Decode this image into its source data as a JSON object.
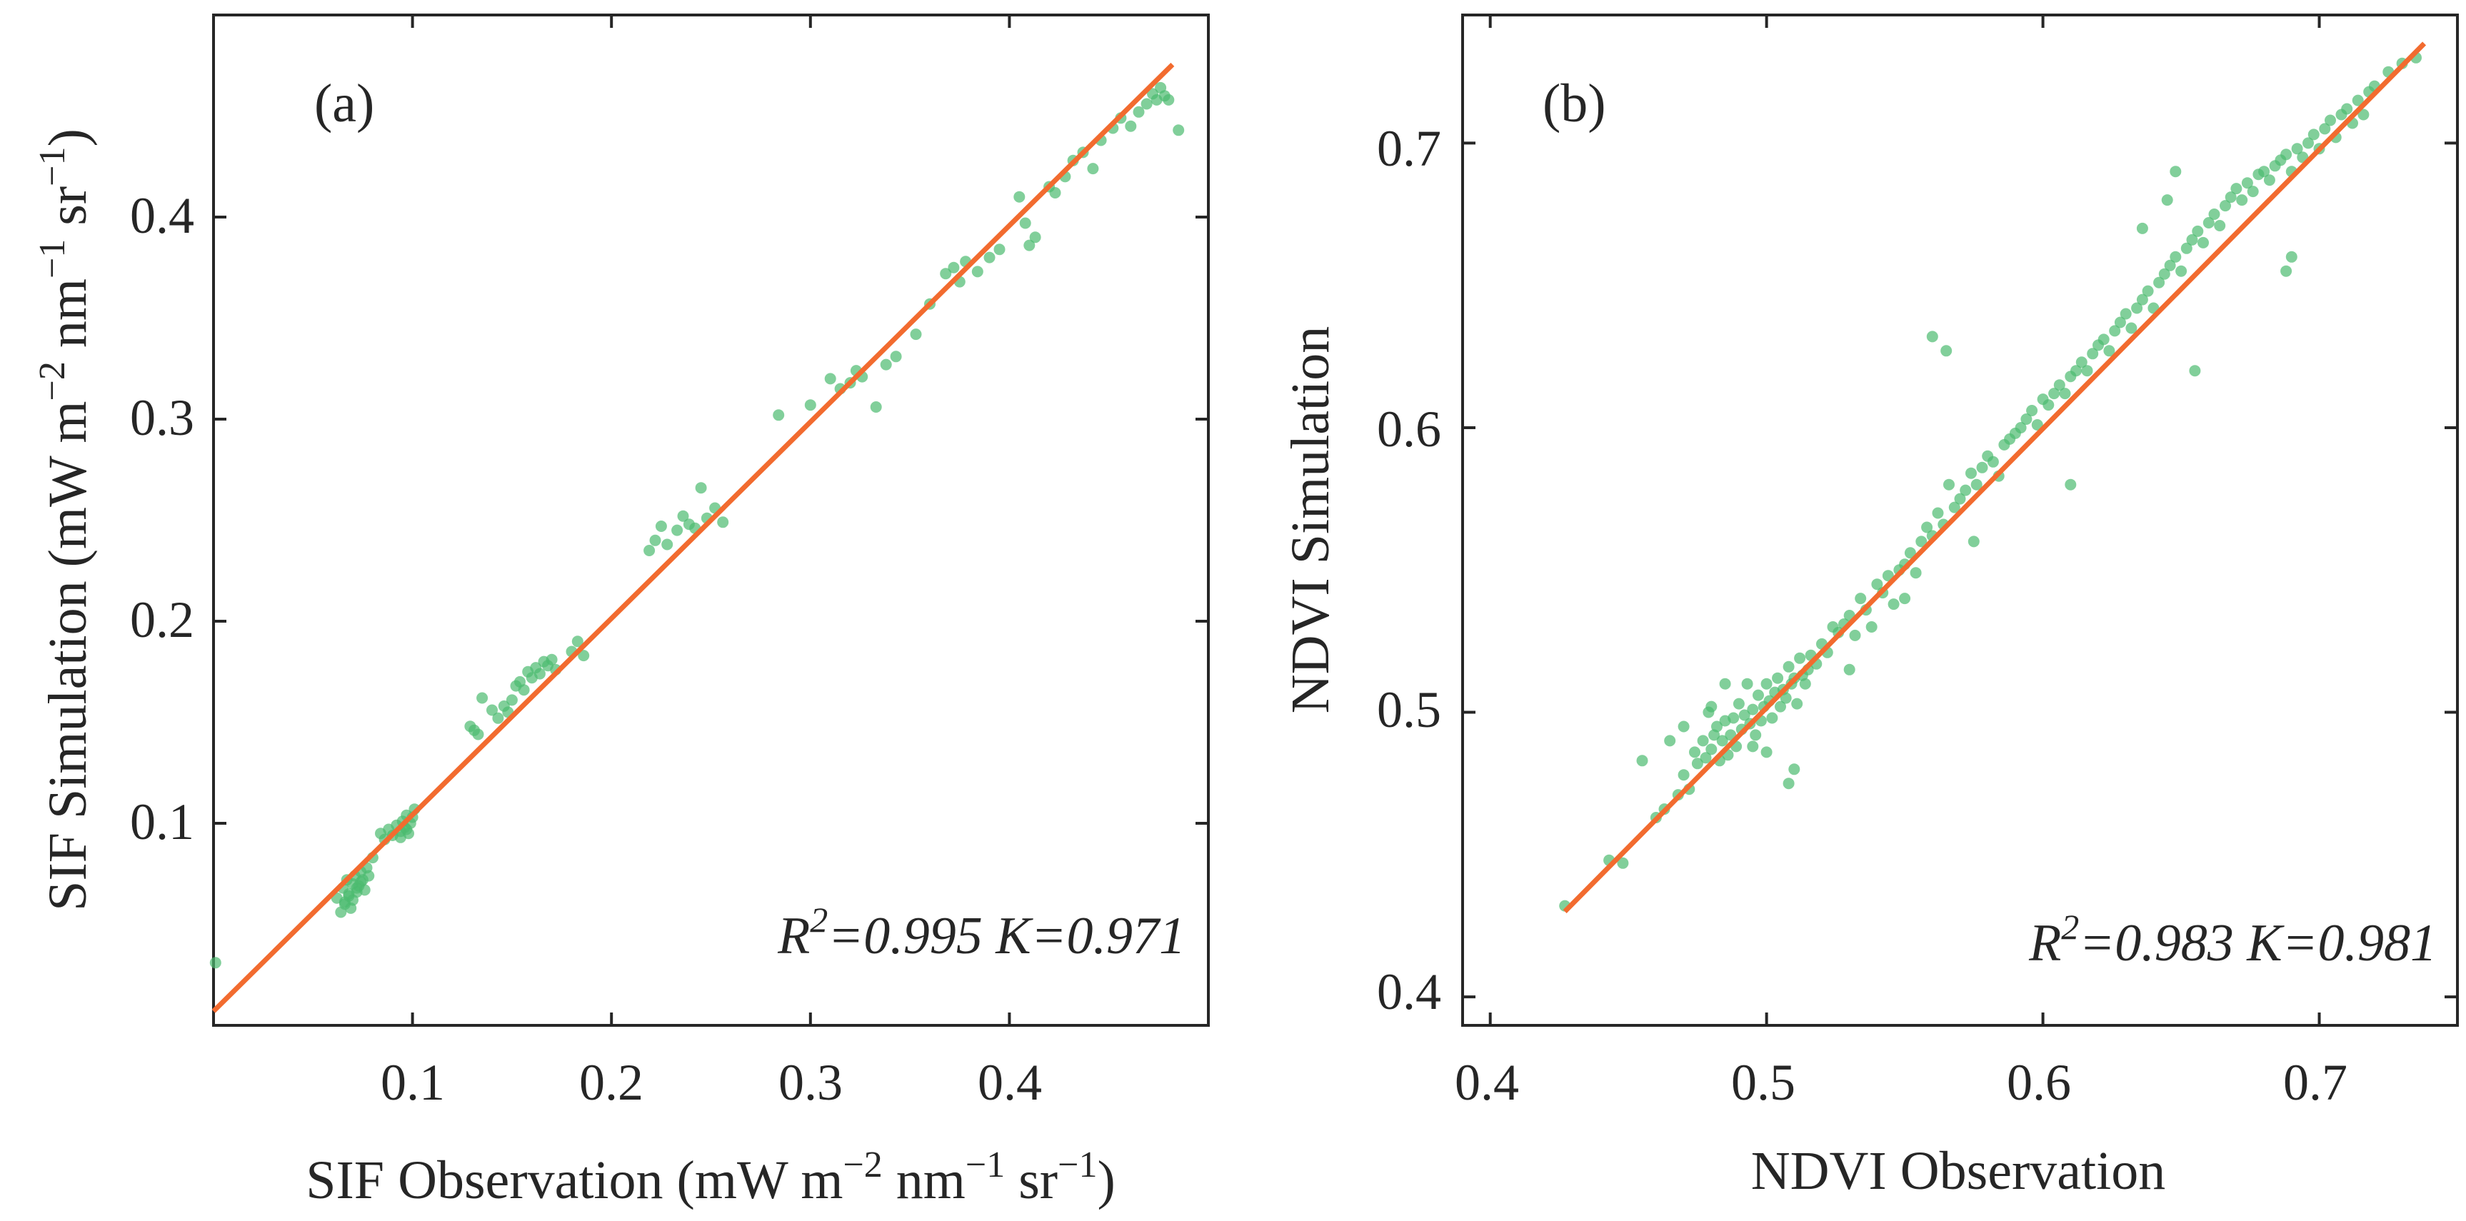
{
  "chart_data": [
    {
      "type": "scatter",
      "panel_label": "(a)",
      "xlabel": {
        "main": "SIF Observation (mW m",
        "e1": "−2",
        "mid1": " nm",
        "e2": "−1",
        "mid2": " sr",
        "e3": "−1",
        "end": ")"
      },
      "ylabel": {
        "main": "SIF Simulation (mW m",
        "e1": "−2",
        "mid1": " nm",
        "e2": "−1",
        "mid2": " sr",
        "e3": "−1",
        "end": ")"
      },
      "xlim": [
        0.0,
        0.5
      ],
      "ylim": [
        0.0,
        0.5
      ],
      "xticks": [
        "0.1",
        "0.2",
        "0.3",
        "0.4"
      ],
      "yticks": [
        "0.1",
        "0.2",
        "0.3",
        "0.4"
      ],
      "stats": {
        "r_base": "R",
        "r_exp": "2",
        "r_value": "=0.995",
        "k_text": "K=0.971"
      },
      "fit_line": {
        "x": [
          0.0,
          0.482
        ],
        "y": [
          0.007,
          0.4755
        ]
      },
      "colors": {
        "points": "#4cbb6f",
        "line": "#f26b2f"
      },
      "points": {
        "x": [
          0.001,
          0.062,
          0.064,
          0.065,
          0.066,
          0.067,
          0.068,
          0.069,
          0.07,
          0.071,
          0.072,
          0.073,
          0.074,
          0.075,
          0.076,
          0.077,
          0.078,
          0.066,
          0.068,
          0.07,
          0.072,
          0.074,
          0.08,
          0.084,
          0.086,
          0.088,
          0.09,
          0.092,
          0.094,
          0.095,
          0.096,
          0.097,
          0.098,
          0.099,
          0.1,
          0.101,
          0.094,
          0.097,
          0.129,
          0.131,
          0.133,
          0.135,
          0.14,
          0.143,
          0.146,
          0.148,
          0.15,
          0.152,
          0.154,
          0.156,
          0.158,
          0.16,
          0.162,
          0.164,
          0.166,
          0.168,
          0.17,
          0.172,
          0.18,
          0.183,
          0.186,
          0.219,
          0.222,
          0.225,
          0.228,
          0.233,
          0.236,
          0.239,
          0.242,
          0.245,
          0.248,
          0.252,
          0.256,
          0.284,
          0.3,
          0.31,
          0.315,
          0.32,
          0.323,
          0.326,
          0.333,
          0.338,
          0.343,
          0.353,
          0.36,
          0.368,
          0.372,
          0.375,
          0.378,
          0.384,
          0.39,
          0.395,
          0.405,
          0.408,
          0.41,
          0.413,
          0.42,
          0.423,
          0.428,
          0.432,
          0.437,
          0.442,
          0.446,
          0.452,
          0.456,
          0.461,
          0.465,
          0.469,
          0.472,
          0.474,
          0.476,
          0.478,
          0.48,
          0.485
        ],
        "y": [
          0.031,
          0.063,
          0.056,
          0.068,
          0.061,
          0.072,
          0.065,
          0.058,
          0.07,
          0.074,
          0.066,
          0.069,
          0.076,
          0.072,
          0.067,
          0.078,
          0.074,
          0.06,
          0.064,
          0.062,
          0.068,
          0.071,
          0.083,
          0.095,
          0.092,
          0.097,
          0.094,
          0.099,
          0.096,
          0.101,
          0.098,
          0.104,
          0.095,
          0.1,
          0.103,
          0.107,
          0.093,
          0.097,
          0.148,
          0.146,
          0.144,
          0.162,
          0.156,
          0.152,
          0.158,
          0.155,
          0.161,
          0.168,
          0.17,
          0.166,
          0.175,
          0.172,
          0.177,
          0.174,
          0.18,
          0.178,
          0.181,
          0.176,
          0.185,
          0.19,
          0.183,
          0.235,
          0.24,
          0.247,
          0.238,
          0.245,
          0.252,
          0.248,
          0.246,
          0.266,
          0.251,
          0.256,
          0.249,
          0.302,
          0.307,
          0.32,
          0.315,
          0.318,
          0.324,
          0.321,
          0.306,
          0.327,
          0.331,
          0.342,
          0.357,
          0.372,
          0.375,
          0.368,
          0.378,
          0.373,
          0.38,
          0.384,
          0.41,
          0.397,
          0.386,
          0.39,
          0.415,
          0.412,
          0.42,
          0.428,
          0.432,
          0.424,
          0.438,
          0.444,
          0.449,
          0.445,
          0.452,
          0.456,
          0.461,
          0.458,
          0.464,
          0.46,
          0.458,
          0.443
        ]
      }
    },
    {
      "type": "scatter",
      "panel_label": "(b)",
      "xlabel": "NDVI Observation",
      "ylabel": "NDVI Simulation",
      "xlim": [
        0.39,
        0.75
      ],
      "ylim": [
        0.39,
        0.745
      ],
      "xticks": [
        "0.4",
        "0.5",
        "0.6",
        "0.7"
      ],
      "yticks": [
        "0.4",
        "0.5",
        "0.6",
        "0.7"
      ],
      "stats": {
        "r_base": "R",
        "r_exp": "2",
        "r_value": "=0.983",
        "k_text": "K=0.981"
      },
      "fit_line": {
        "x": [
          0.427,
          0.738
        ],
        "y": [
          0.43,
          0.735
        ]
      },
      "colors": {
        "points": "#4cbb6f",
        "line": "#f26b2f"
      },
      "points": {
        "x": [
          0.427,
          0.443,
          0.448,
          0.455,
          0.46,
          0.463,
          0.465,
          0.468,
          0.47,
          0.472,
          0.474,
          0.475,
          0.477,
          0.478,
          0.479,
          0.48,
          0.481,
          0.482,
          0.483,
          0.484,
          0.485,
          0.486,
          0.487,
          0.488,
          0.489,
          0.49,
          0.491,
          0.492,
          0.493,
          0.494,
          0.495,
          0.496,
          0.497,
          0.498,
          0.499,
          0.5,
          0.501,
          0.502,
          0.503,
          0.504,
          0.505,
          0.506,
          0.507,
          0.508,
          0.509,
          0.51,
          0.511,
          0.512,
          0.513,
          0.514,
          0.515,
          0.516,
          0.518,
          0.52,
          0.522,
          0.524,
          0.526,
          0.528,
          0.53,
          0.532,
          0.534,
          0.536,
          0.538,
          0.54,
          0.542,
          0.544,
          0.546,
          0.548,
          0.55,
          0.552,
          0.554,
          0.556,
          0.558,
          0.56,
          0.562,
          0.564,
          0.566,
          0.568,
          0.57,
          0.572,
          0.574,
          0.576,
          0.578,
          0.58,
          0.582,
          0.584,
          0.586,
          0.588,
          0.59,
          0.592,
          0.594,
          0.596,
          0.598,
          0.6,
          0.602,
          0.604,
          0.606,
          0.608,
          0.61,
          0.612,
          0.614,
          0.616,
          0.618,
          0.62,
          0.622,
          0.624,
          0.626,
          0.628,
          0.63,
          0.632,
          0.634,
          0.636,
          0.638,
          0.64,
          0.642,
          0.644,
          0.646,
          0.648,
          0.65,
          0.652,
          0.654,
          0.656,
          0.658,
          0.66,
          0.662,
          0.664,
          0.666,
          0.668,
          0.67,
          0.672,
          0.674,
          0.676,
          0.678,
          0.68,
          0.682,
          0.684,
          0.686,
          0.688,
          0.69,
          0.692,
          0.694,
          0.696,
          0.698,
          0.7,
          0.702,
          0.704,
          0.706,
          0.708,
          0.71,
          0.712,
          0.714,
          0.716,
          0.718,
          0.72,
          0.725,
          0.73,
          0.735,
          0.56,
          0.565,
          0.508,
          0.51,
          0.5,
          0.53,
          0.61,
          0.645,
          0.655,
          0.688,
          0.69,
          0.648,
          0.636,
          0.48,
          0.485,
          0.47,
          0.495,
          0.55,
          0.575
        ],
        "y": [
          0.432,
          0.448,
          0.447,
          0.483,
          0.463,
          0.466,
          0.49,
          0.471,
          0.478,
          0.473,
          0.486,
          0.482,
          0.49,
          0.484,
          0.5,
          0.487,
          0.492,
          0.495,
          0.483,
          0.49,
          0.497,
          0.485,
          0.492,
          0.498,
          0.488,
          0.503,
          0.494,
          0.499,
          0.51,
          0.496,
          0.501,
          0.492,
          0.506,
          0.497,
          0.502,
          0.51,
          0.504,
          0.498,
          0.507,
          0.512,
          0.502,
          0.508,
          0.505,
          0.516,
          0.51,
          0.512,
          0.503,
          0.519,
          0.513,
          0.51,
          0.515,
          0.52,
          0.517,
          0.524,
          0.521,
          0.53,
          0.528,
          0.531,
          0.534,
          0.527,
          0.54,
          0.536,
          0.53,
          0.545,
          0.542,
          0.548,
          0.538,
          0.55,
          0.552,
          0.556,
          0.549,
          0.56,
          0.565,
          0.562,
          0.57,
          0.566,
          0.58,
          0.572,
          0.575,
          0.578,
          0.584,
          0.58,
          0.586,
          0.59,
          0.588,
          0.583,
          0.594,
          0.596,
          0.598,
          0.6,
          0.603,
          0.606,
          0.601,
          0.61,
          0.608,
          0.612,
          0.615,
          0.612,
          0.618,
          0.62,
          0.623,
          0.62,
          0.626,
          0.629,
          0.631,
          0.627,
          0.634,
          0.637,
          0.64,
          0.635,
          0.642,
          0.645,
          0.648,
          0.642,
          0.651,
          0.654,
          0.657,
          0.66,
          0.655,
          0.663,
          0.666,
          0.669,
          0.665,
          0.672,
          0.675,
          0.671,
          0.678,
          0.681,
          0.684,
          0.68,
          0.686,
          0.683,
          0.689,
          0.69,
          0.687,
          0.692,
          0.694,
          0.696,
          0.69,
          0.698,
          0.695,
          0.7,
          0.703,
          0.698,
          0.705,
          0.708,
          0.702,
          0.71,
          0.712,
          0.707,
          0.715,
          0.71,
          0.718,
          0.72,
          0.725,
          0.728,
          0.73,
          0.632,
          0.627,
          0.475,
          0.48,
          0.486,
          0.515,
          0.58,
          0.68,
          0.62,
          0.655,
          0.66,
          0.69,
          0.67,
          0.502,
          0.51,
          0.495,
          0.488,
          0.54,
          0.56
        ]
      }
    }
  ]
}
